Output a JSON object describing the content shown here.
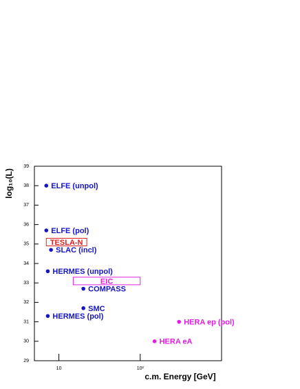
{
  "chart_data": {
    "type": "scatter",
    "x_label": "c.m. Energy [GeV]",
    "y_label": "log₁₀(L)",
    "xscale": "log",
    "xlim": [
      5,
      1000
    ],
    "xticks": [
      10,
      {
        "value": 100,
        "label": "10²"
      }
    ],
    "ylim": [
      29,
      39
    ],
    "yticks": [
      29,
      30,
      31,
      32,
      33,
      34,
      35,
      36,
      37,
      38,
      39
    ],
    "series": [
      {
        "name": "ELFE (unpol)",
        "color": "#1414c8",
        "x": [
          7
        ],
        "values": [
          38
        ]
      },
      {
        "name": "ELFE (pol)",
        "color": "#1414c8",
        "x": [
          7
        ],
        "values": [
          35.7
        ]
      },
      {
        "name": "SLAC (incl)",
        "color": "#1414c8",
        "x": [
          8
        ],
        "values": [
          34.7
        ]
      },
      {
        "name": "HERMES (unpol)",
        "color": "#1414c8",
        "x": [
          7.3
        ],
        "values": [
          33.6
        ]
      },
      {
        "name": "COMPASS",
        "color": "#1414c8",
        "x": [
          20
        ],
        "values": [
          32.7
        ]
      },
      {
        "name": "SMC",
        "color": "#1414c8",
        "x": [
          20
        ],
        "values": [
          31.7
        ]
      },
      {
        "name": "HERMES (pol)",
        "color": "#1414c8",
        "x": [
          7.3
        ],
        "values": [
          31.3
        ]
      },
      {
        "name": "HERA ep (pol)",
        "color": "#e020e0",
        "x": [
          300
        ],
        "values": [
          31
        ]
      },
      {
        "name": "HERA eA",
        "color": "#e020e0",
        "x": [
          150
        ],
        "values": [
          30
        ]
      }
    ],
    "boxes": [
      {
        "name": "TESLA-N",
        "color": "#e02020",
        "x": [
          7,
          22
        ],
        "value": 35.1
      },
      {
        "name": "EIC",
        "color": "#e020e0",
        "x": [
          15,
          100
        ],
        "value": 33.1
      }
    ]
  }
}
